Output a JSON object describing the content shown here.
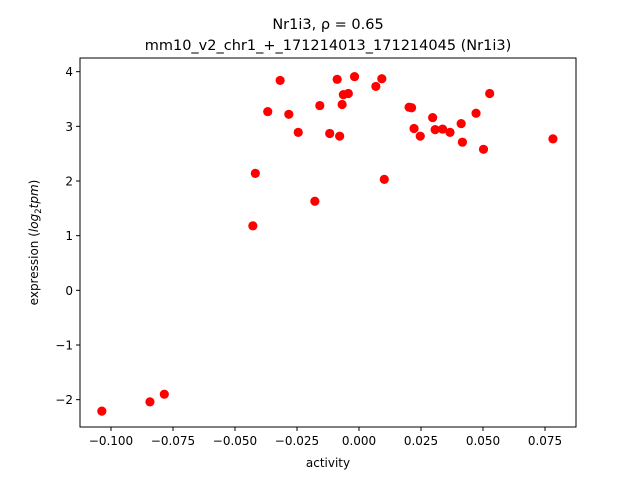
{
  "chart_data": {
    "type": "scatter",
    "title_line1": "Nr1i3, ρ = 0.65",
    "title_line2": "mm10_v2_chr1_+_171214013_171214045 (Nr1i3)",
    "xlabel": "activity",
    "ylabel_prefix": "expression (",
    "ylabel_math": "log",
    "ylabel_sub": "2",
    "ylabel_math2": "tpm",
    "ylabel_suffix": ")",
    "xlim": [
      -0.1125,
      0.0875
    ],
    "ylim": [
      -2.5,
      4.25
    ],
    "xticks": [
      -0.1,
      -0.075,
      -0.05,
      -0.025,
      0.0,
      0.025,
      0.05,
      0.075
    ],
    "xtick_labels": [
      "−0.100",
      "−0.075",
      "−0.050",
      "−0.025",
      "0.000",
      "0.025",
      "0.050",
      "0.075"
    ],
    "yticks": [
      -2,
      -1,
      0,
      1,
      2,
      3,
      4
    ],
    "ytick_labels": [
      "−2",
      "−1",
      "0",
      "1",
      "2",
      "3",
      "4"
    ],
    "grid": false,
    "marker_color": "#ff0000",
    "points": [
      {
        "x": -0.1037,
        "y": -2.21
      },
      {
        "x": -0.0843,
        "y": -2.04
      },
      {
        "x": -0.0785,
        "y": -1.9
      },
      {
        "x": -0.0428,
        "y": 1.18
      },
      {
        "x": -0.0418,
        "y": 2.14
      },
      {
        "x": -0.0368,
        "y": 3.27
      },
      {
        "x": -0.0318,
        "y": 3.84
      },
      {
        "x": -0.0283,
        "y": 3.22
      },
      {
        "x": -0.0245,
        "y": 2.89
      },
      {
        "x": -0.0178,
        "y": 1.63
      },
      {
        "x": -0.0158,
        "y": 3.38
      },
      {
        "x": -0.0118,
        "y": 2.87
      },
      {
        "x": -0.0088,
        "y": 3.86
      },
      {
        "x": -0.0078,
        "y": 2.82
      },
      {
        "x": -0.0068,
        "y": 3.4
      },
      {
        "x": -0.0063,
        "y": 3.58
      },
      {
        "x": -0.0043,
        "y": 3.6
      },
      {
        "x": -0.0018,
        "y": 3.91
      },
      {
        "x": 0.0068,
        "y": 3.73
      },
      {
        "x": 0.0092,
        "y": 3.87
      },
      {
        "x": 0.0102,
        "y": 2.03
      },
      {
        "x": 0.0202,
        "y": 3.35
      },
      {
        "x": 0.0212,
        "y": 3.34
      },
      {
        "x": 0.0222,
        "y": 2.96
      },
      {
        "x": 0.0247,
        "y": 2.82
      },
      {
        "x": 0.0297,
        "y": 3.16
      },
      {
        "x": 0.0307,
        "y": 2.94
      },
      {
        "x": 0.0337,
        "y": 2.95
      },
      {
        "x": 0.0367,
        "y": 2.89
      },
      {
        "x": 0.0412,
        "y": 3.05
      },
      {
        "x": 0.0417,
        "y": 2.71
      },
      {
        "x": 0.0472,
        "y": 3.24
      },
      {
        "x": 0.0502,
        "y": 2.58
      },
      {
        "x": 0.0527,
        "y": 3.6
      },
      {
        "x": 0.0782,
        "y": 2.77
      }
    ]
  }
}
